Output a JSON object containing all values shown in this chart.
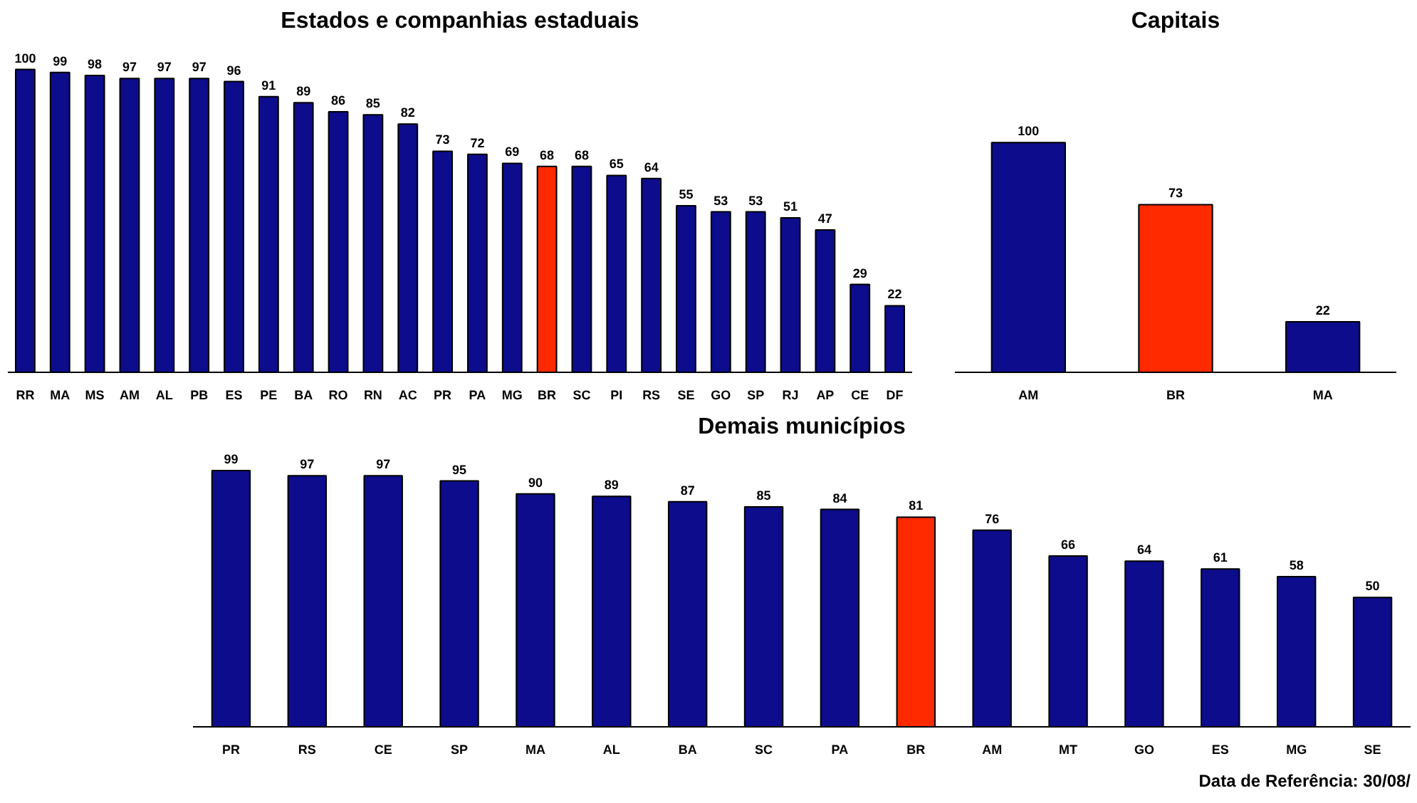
{
  "chart_data": [
    {
      "type": "bar",
      "title": "Estados e companhias estaduais",
      "categories": [
        "RR",
        "MA",
        "MS",
        "AM",
        "AL",
        "PB",
        "ES",
        "PE",
        "BA",
        "RO",
        "RN",
        "AC",
        "PR",
        "PA",
        "MG",
        "BR",
        "SC",
        "PI",
        "RS",
        "SE",
        "GO",
        "SP",
        "RJ",
        "AP",
        "CE",
        "DF"
      ],
      "values": [
        100,
        99,
        98,
        97,
        97,
        97,
        96,
        91,
        89,
        86,
        85,
        82,
        73,
        72,
        69,
        68,
        68,
        65,
        64,
        55,
        53,
        53,
        51,
        47,
        29,
        22
      ],
      "colors": [
        "#0c0c8c",
        "#0c0c8c",
        "#0c0c8c",
        "#0c0c8c",
        "#0c0c8c",
        "#0c0c8c",
        "#0c0c8c",
        "#0c0c8c",
        "#0c0c8c",
        "#0c0c8c",
        "#0c0c8c",
        "#0c0c8c",
        "#0c0c8c",
        "#0c0c8c",
        "#0c0c8c",
        "#ff2a00",
        "#0c0c8c",
        "#0c0c8c",
        "#0c0c8c",
        "#0c0c8c",
        "#0c0c8c",
        "#0c0c8c",
        "#0c0c8c",
        "#0c0c8c",
        "#0c0c8c",
        "#0c0c8c"
      ],
      "data_labels": true
    },
    {
      "type": "bar",
      "title": "Capitais",
      "categories": [
        "AM",
        "BR",
        "MA"
      ],
      "values": [
        100,
        73,
        22
      ],
      "colors": [
        "#0c0c8c",
        "#ff2a00",
        "#0c0c8c"
      ],
      "data_labels": true
    },
    {
      "type": "bar",
      "title": "Demais municípios",
      "categories": [
        "PR",
        "RS",
        "CE",
        "SP",
        "MA",
        "AL",
        "BA",
        "SC",
        "PA",
        "BR",
        "AM",
        "MT",
        "GO",
        "ES",
        "MG",
        "SE"
      ],
      "values": [
        99,
        97,
        97,
        95,
        90,
        89,
        87,
        85,
        84,
        81,
        76,
        66,
        64,
        61,
        58,
        50
      ],
      "colors": [
        "#0c0c8c",
        "#0c0c8c",
        "#0c0c8c",
        "#0c0c8c",
        "#0c0c8c",
        "#0c0c8c",
        "#0c0c8c",
        "#0c0c8c",
        "#0c0c8c",
        "#ff2a00",
        "#0c0c8c",
        "#0c0c8c",
        "#0c0c8c",
        "#0c0c8c",
        "#0c0c8c",
        "#0c0c8c"
      ],
      "data_labels": true,
      "annotations": [
        "Data de Referência: 30/08/"
      ]
    }
  ]
}
